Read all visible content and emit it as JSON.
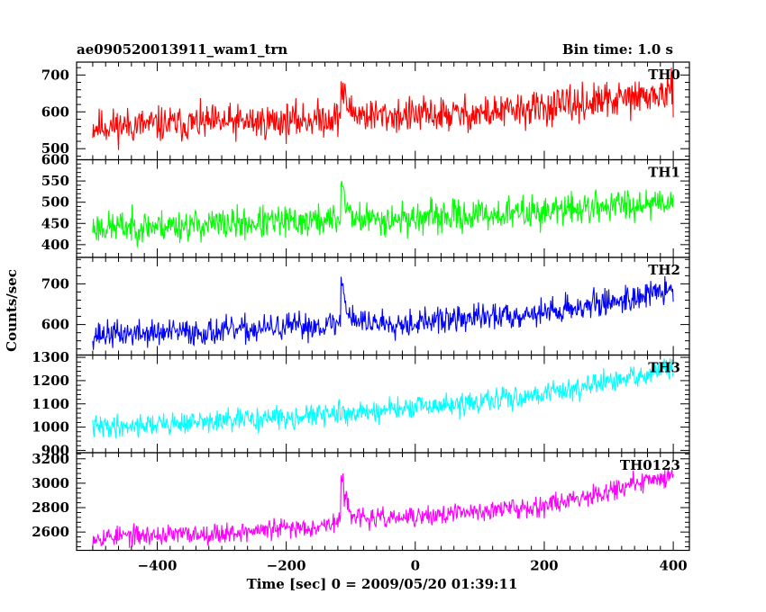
{
  "header": {
    "title": "ae090520013911_wam1_trn",
    "bin_time": "Bin time: 1.0 s"
  },
  "chart_data": {
    "type": "line",
    "ylabel": "Counts/sec",
    "xlabel": "Time [sec] 0 = 2009/05/20 01:39:11",
    "x_range": [
      -500,
      400
    ],
    "xlim": [
      -525,
      425
    ],
    "x_ticks": [
      -400,
      -200,
      0,
      200,
      400
    ],
    "x_tick_labels": [
      "−400",
      "−200",
      "0",
      "200",
      "400"
    ],
    "grid": false,
    "panels": [
      {
        "name": "TH0",
        "color": "#ff0000",
        "ylim": [
          470,
          735
        ],
        "y_ticks": [
          500,
          600,
          700
        ],
        "y_tick_labels": [
          "500",
          "600",
          "700"
        ],
        "baseline": [
          [
            -500,
            560
          ],
          [
            -350,
            568
          ],
          [
            -200,
            575
          ],
          [
            -120,
            585
          ],
          [
            -100,
            590
          ],
          [
            0,
            590
          ],
          [
            100,
            595
          ],
          [
            200,
            610
          ],
          [
            300,
            630
          ],
          [
            400,
            650
          ]
        ],
        "noise": 32,
        "spike": {
          "x": -115,
          "height": 90,
          "decay": 9
        },
        "seed": 11
      },
      {
        "name": "TH1",
        "color": "#00ff00",
        "ylim": [
          370,
          600
        ],
        "y_ticks": [
          400,
          450,
          500,
          550,
          600
        ],
        "y_tick_labels": [
          "400",
          "450",
          "500",
          "550",
          "600"
        ],
        "baseline": [
          [
            -500,
            440
          ],
          [
            -300,
            448
          ],
          [
            -120,
            458
          ],
          [
            0,
            462
          ],
          [
            200,
            478
          ],
          [
            400,
            505
          ]
        ],
        "noise": 25,
        "spike": {
          "x": -115,
          "height": 110,
          "decay": 7
        },
        "seed": 23
      },
      {
        "name": "TH2",
        "color": "#0000ff",
        "ylim": [
          525,
          765
        ],
        "y_ticks": [
          600,
          700
        ],
        "y_tick_labels": [
          "600",
          "700"
        ],
        "baseline": [
          [
            -500,
            575
          ],
          [
            -300,
            583
          ],
          [
            -150,
            598
          ],
          [
            -100,
            605
          ],
          [
            0,
            605
          ],
          [
            200,
            630
          ],
          [
            300,
            655
          ],
          [
            400,
            685
          ]
        ],
        "noise": 22,
        "spike": {
          "x": -115,
          "height": 120,
          "decay": 8
        },
        "seed": 37
      },
      {
        "name": "TH3",
        "color": "#00ffff",
        "ylim": [
          890,
          1310
        ],
        "y_ticks": [
          900,
          1000,
          1100,
          1200,
          1300
        ],
        "y_tick_labels": [
          "900",
          "1000",
          "1100",
          "1200",
          "1300"
        ],
        "baseline": [
          [
            -500,
            1000
          ],
          [
            -300,
            1025
          ],
          [
            -100,
            1060
          ],
          [
            100,
            1105
          ],
          [
            300,
            1190
          ],
          [
            400,
            1255
          ]
        ],
        "noise": 32,
        "spike": null,
        "seed": 41
      },
      {
        "name": "TH0123",
        "color": "#ff00ff",
        "ylim": [
          2450,
          3250
        ],
        "y_ticks": [
          2600,
          2800,
          3000,
          3200
        ],
        "y_tick_labels": [
          "2600",
          "2800",
          "3000",
          "3200"
        ],
        "baseline": [
          [
            -500,
            2560
          ],
          [
            -300,
            2590
          ],
          [
            -150,
            2650
          ],
          [
            -120,
            2680
          ],
          [
            -100,
            2700
          ],
          [
            0,
            2720
          ],
          [
            200,
            2820
          ],
          [
            300,
            2940
          ],
          [
            400,
            3070
          ]
        ],
        "noise": 55,
        "spike": {
          "x": -115,
          "height": 400,
          "decay": 9
        },
        "seed": 53
      }
    ]
  }
}
